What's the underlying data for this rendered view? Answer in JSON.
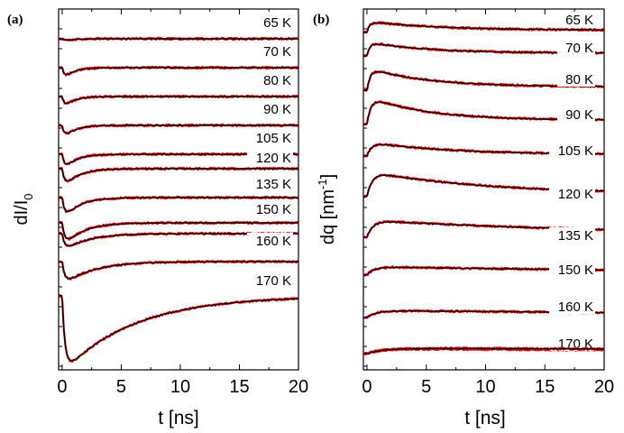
{
  "chart_data": [
    {
      "type": "line",
      "panel_label": "(a)",
      "xlabel": "t [ns]",
      "ylabel_main": "dI/I",
      "ylabel_sub": "0",
      "xlim": [
        -0.3,
        20
      ],
      "xticks": [
        "0",
        "5",
        "10",
        "15",
        "20"
      ],
      "xtick_values": [
        0,
        5,
        10,
        15,
        20
      ],
      "series_style": {
        "data_color": "#ff0000",
        "fit_color": "#000000"
      },
      "series": [
        {
          "name": "65 K",
          "kind": "dip",
          "amplitude": 0.004,
          "tau_fast": 0.3,
          "tau_slow": 0.8
        },
        {
          "name": "70 K",
          "kind": "dip",
          "amplitude": 0.02,
          "tau_fast": 0.25,
          "tau_slow": 0.8
        },
        {
          "name": "80 K",
          "kind": "dip",
          "amplitude": 0.02,
          "tau_fast": 0.25,
          "tau_slow": 0.8
        },
        {
          "name": "90 K",
          "kind": "dip",
          "amplitude": 0.022,
          "tau_fast": 0.25,
          "tau_slow": 0.9
        },
        {
          "name": "105 K",
          "kind": "dip",
          "amplitude": 0.026,
          "tau_fast": 0.25,
          "tau_slow": 1.0
        },
        {
          "name": "120 K",
          "kind": "dip",
          "amplitude": 0.03,
          "tau_fast": 0.25,
          "tau_slow": 1.2
        },
        {
          "name": "135 K",
          "kind": "dip",
          "amplitude": 0.034,
          "tau_fast": 0.25,
          "tau_slow": 1.3
        },
        {
          "name": "150 K",
          "kind": "dip",
          "amplitude": 0.036,
          "tau_fast": 0.25,
          "tau_slow": 1.6
        },
        {
          "name": "160 K",
          "kind": "dip",
          "amplitude": 0.026,
          "tau_fast": 0.25,
          "tau_slow": 2.0
        },
        {
          "name": "170 K",
          "kind": "dip",
          "amplitude": 0.034,
          "tau_fast": 0.25,
          "tau_slow": 2.5
        },
        {
          "name": "",
          "kind": "dip",
          "amplitude": 0.11,
          "tau_fast": 0.25,
          "tau_slow": 6.0
        }
      ]
    },
    {
      "type": "line",
      "panel_label": "(b)",
      "xlabel": "t [ns]",
      "ylabel_main": "dq [nm",
      "ylabel_sup": "-1",
      "ylabel_end": "]",
      "xlim": [
        -0.3,
        20
      ],
      "xticks": [
        "0",
        "5",
        "10",
        "15",
        "20"
      ],
      "xtick_values": [
        0,
        5,
        10,
        15,
        20
      ],
      "series_style": {
        "data_color": "#ff0000",
        "fit_color": "#000000"
      },
      "series": [
        {
          "name": "65 K",
          "kind": "rise",
          "amplitude": 0.016,
          "tau_rise": 0.25,
          "tau_decay": 6.0,
          "offset": 0.2
        },
        {
          "name": "70 K",
          "kind": "rise",
          "amplitude": 0.02,
          "tau_rise": 0.25,
          "tau_decay": 5.0,
          "offset": 0.2
        },
        {
          "name": "80 K",
          "kind": "rise",
          "amplitude": 0.032,
          "tau_rise": 0.3,
          "tau_decay": 5.0,
          "offset": 0.15
        },
        {
          "name": "90 K",
          "kind": "rise",
          "amplitude": 0.04,
          "tau_rise": 0.35,
          "tau_decay": 5.0,
          "offset": 0.15
        },
        {
          "name": "105 K",
          "kind": "rise",
          "amplitude": 0.02,
          "tau_rise": 0.4,
          "tau_decay": 7.0,
          "offset": 0.1
        },
        {
          "name": "120 K",
          "kind": "rise",
          "amplitude": 0.036,
          "tau_rise": 0.45,
          "tau_decay": 10.0,
          "offset": 0.1
        },
        {
          "name": "135 K",
          "kind": "rise",
          "amplitude": 0.024,
          "tau_rise": 0.5,
          "tau_decay": 25.0,
          "offset": 0.0
        },
        {
          "name": "150 K",
          "kind": "rise",
          "amplitude": 0.012,
          "tau_rise": 0.6,
          "tau_decay": 40.0,
          "offset": 0.0
        },
        {
          "name": "160 K",
          "kind": "rise",
          "amplitude": 0.01,
          "tau_rise": 0.8,
          "tau_decay": 60.0,
          "offset": 0.0
        },
        {
          "name": "170 K",
          "kind": "rise",
          "amplitude": 0.007,
          "tau_rise": 1.2,
          "tau_decay": 80.0,
          "offset": 0.0
        },
        {
          "name": "",
          "kind": "rise",
          "amplitude": 0.008,
          "tau_rise": 1.5,
          "tau_decay": 100.0,
          "offset": 0.0
        }
      ]
    }
  ]
}
